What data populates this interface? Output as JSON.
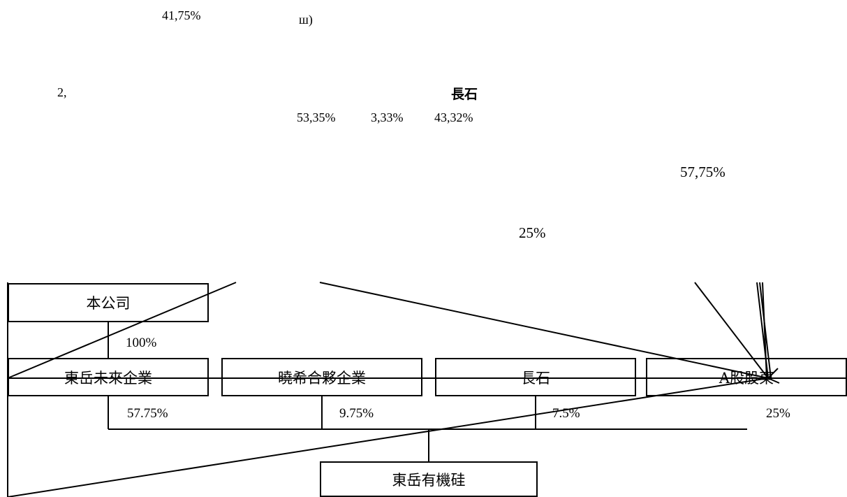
{
  "top_fragments": {
    "pct_41": "41,75%",
    "glyph": "ш)",
    "num_2": "2,",
    "changshi_bold": "長石",
    "pcts_row": [
      "53,35%",
      "3,33%",
      "43,32%"
    ],
    "pct_57": "57,75%",
    "pct_25": "25%"
  },
  "org_chart": {
    "company": "本公司",
    "company_stake": "100%",
    "shareholders": [
      {
        "name": "東岳未來企業",
        "stake": "57.75%"
      },
      {
        "name": "曉希合夥企業",
        "stake": "9.75%"
      },
      {
        "name": "長石",
        "stake": "7.5%"
      },
      {
        "name": "A股股東",
        "stake": "25%"
      }
    ],
    "subsidiary": "東岳有機硅"
  },
  "colors": {
    "line": "#000000",
    "background": "#ffffff"
  }
}
